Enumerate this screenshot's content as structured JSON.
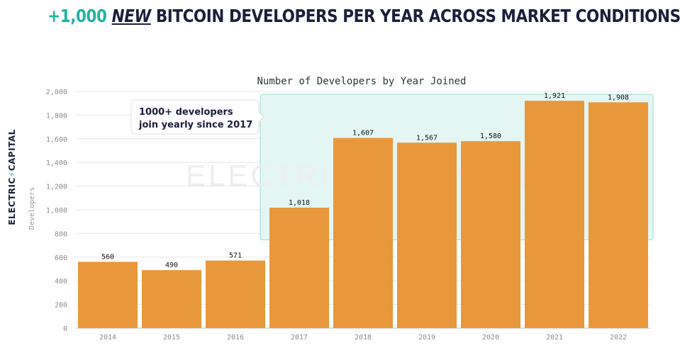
{
  "headline": {
    "accent": "+1,000",
    "emphasis": "NEW",
    "rest": "BITCOIN DEVELOPERS PER YEAR ACROSS MARKET CONDITIONS"
  },
  "brand": {
    "left": "ELECTRIC",
    "bolt": "⚡",
    "right": "CAPITAL"
  },
  "watermark": "ELECTRIC⚡CAPITAL",
  "callout": {
    "line1": "1000+ developers",
    "line2": "join yearly since 2017"
  },
  "colors": {
    "bar": "#e8983b",
    "accent": "#22b3a3",
    "highlight_fill": "#e2f6f2",
    "highlight_stroke": "#8fd9cb",
    "text": "#1b1f3b"
  },
  "chart_data": {
    "type": "bar",
    "title": "Number of Developers by Year Joined",
    "xlabel": "",
    "ylabel": "Developers",
    "categories": [
      "2014",
      "2015",
      "2016",
      "2017",
      "2018",
      "2019",
      "2020",
      "2021",
      "2022"
    ],
    "values": [
      560,
      490,
      571,
      1018,
      1607,
      1567,
      1580,
      1921,
      1908
    ],
    "data_labels": [
      "560",
      "490",
      "571",
      "1,018",
      "1,607",
      "1,567",
      "1,580",
      "1,921",
      "1,908"
    ],
    "ylim": [
      0,
      2000
    ],
    "yticks": [
      0,
      200,
      400,
      600,
      800,
      1000,
      1200,
      1400,
      1600,
      1800,
      2000
    ],
    "ytick_labels": [
      "0",
      "200",
      "400",
      "600",
      "800",
      "1,000",
      "1,200",
      "1,400",
      "1,600",
      "1,800",
      "2,000"
    ],
    "highlight_from": "2017",
    "highlight_to": "2022",
    "grid": true
  }
}
